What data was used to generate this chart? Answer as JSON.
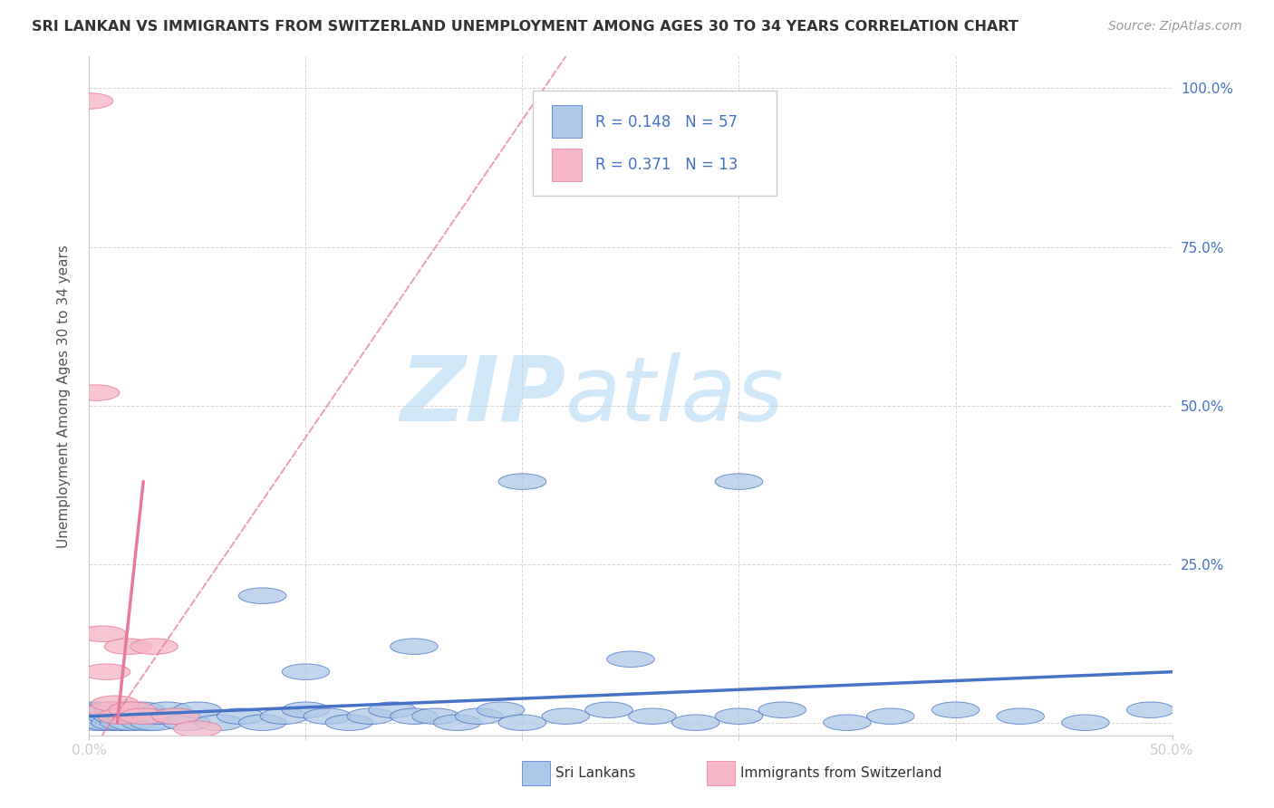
{
  "title": "SRI LANKAN VS IMMIGRANTS FROM SWITZERLAND UNEMPLOYMENT AMONG AGES 30 TO 34 YEARS CORRELATION CHART",
  "source": "Source: ZipAtlas.com",
  "ylabel": "Unemployment Among Ages 30 to 34 years",
  "xlim": [
    0.0,
    0.5
  ],
  "ylim": [
    -0.02,
    1.05
  ],
  "xticks": [
    0.0,
    0.1,
    0.2,
    0.3,
    0.4,
    0.5
  ],
  "xtick_labels": [
    "0.0%",
    "",
    "",
    "",
    "",
    "50.0%"
  ],
  "yticks": [
    0.0,
    0.25,
    0.5,
    0.75,
    1.0
  ],
  "ytick_labels_right": [
    "",
    "25.0%",
    "50.0%",
    "75.0%",
    "100.0%"
  ],
  "blue_R": "0.148",
  "blue_N": "57",
  "pink_R": "0.371",
  "pink_N": "13",
  "blue_color": "#adc9e8",
  "pink_color": "#f4b8c8",
  "blue_line_color": "#4472c4",
  "pink_line_color": "#e8799a",
  "watermark_zip": "ZIP",
  "watermark_atlas": "atlas",
  "watermark_color": "#d0e8f8",
  "legend_label_blue": "Sri Lankans",
  "legend_label_pink": "Immigrants from Switzerland",
  "blue_scatter_x": [
    0.001,
    0.002,
    0.003,
    0.004,
    0.005,
    0.006,
    0.007,
    0.008,
    0.009,
    0.01,
    0.011,
    0.012,
    0.013,
    0.014,
    0.015,
    0.016,
    0.017,
    0.018,
    0.019,
    0.02,
    0.022,
    0.024,
    0.026,
    0.028,
    0.03,
    0.033,
    0.036,
    0.04,
    0.045,
    0.05,
    0.06,
    0.07,
    0.08,
    0.09,
    0.1,
    0.11,
    0.12,
    0.13,
    0.14,
    0.15,
    0.16,
    0.17,
    0.18,
    0.19,
    0.2,
    0.22,
    0.24,
    0.26,
    0.28,
    0.3,
    0.32,
    0.35,
    0.37,
    0.4,
    0.43,
    0.46,
    0.49
  ],
  "blue_scatter_y": [
    0.01,
    0.02,
    0.01,
    0.0,
    0.01,
    0.02,
    0.01,
    0.0,
    0.02,
    0.01,
    0.02,
    0.0,
    0.01,
    0.02,
    0.01,
    0.0,
    0.01,
    0.02,
    0.01,
    0.0,
    0.01,
    0.02,
    0.0,
    0.01,
    0.0,
    0.01,
    0.02,
    0.01,
    0.0,
    0.02,
    0.0,
    0.01,
    0.0,
    0.01,
    0.02,
    0.01,
    0.0,
    0.01,
    0.02,
    0.01,
    0.01,
    0.0,
    0.01,
    0.02,
    0.0,
    0.01,
    0.02,
    0.01,
    0.0,
    0.01,
    0.02,
    0.0,
    0.01,
    0.02,
    0.01,
    0.0,
    0.02
  ],
  "blue_outlier_x": [
    0.2,
    0.3,
    0.08,
    0.15,
    0.25,
    0.1
  ],
  "blue_outlier_y": [
    0.38,
    0.38,
    0.2,
    0.12,
    0.1,
    0.08
  ],
  "pink_scatter_x": [
    0.0,
    0.003,
    0.006,
    0.008,
    0.01,
    0.012,
    0.015,
    0.018,
    0.02,
    0.025,
    0.03,
    0.04,
    0.05
  ],
  "pink_scatter_y": [
    0.98,
    0.52,
    0.14,
    0.08,
    0.02,
    0.03,
    0.01,
    0.12,
    0.02,
    0.01,
    0.12,
    0.01,
    -0.01
  ],
  "grid_color": "#cccccc",
  "background_color": "#ffffff",
  "title_color": "#333333",
  "axis_label_color": "#555555",
  "tick_color": "#4472c4",
  "r_n_text_color": "#4472c4"
}
